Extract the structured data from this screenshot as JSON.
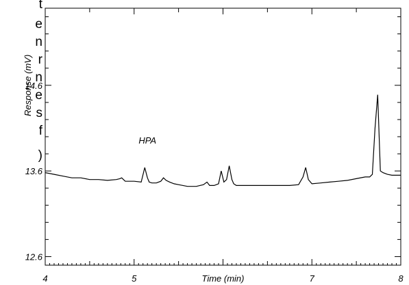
{
  "edge_text": [
    "t",
    "e",
    "n",
    "r",
    "n",
    "e",
    "s",
    "f",
    ")"
  ],
  "chart_data": {
    "type": "line",
    "title": "",
    "xlabel": "Time (min)",
    "ylabel": "Response (mV)",
    "xlim": [
      4,
      8
    ],
    "ylim": [
      12.5,
      15.5
    ],
    "x_ticks": [
      "4",
      "5",
      "6",
      "7",
      "8"
    ],
    "x_tick_labels_shown": [
      "4",
      "5",
      "Time (min)",
      "7",
      "8"
    ],
    "y_ticks": [
      "12.6",
      "13.6",
      "14.6"
    ],
    "grid": false,
    "annotations": [
      {
        "text": "HPA",
        "x": 5.15,
        "y": 13.72
      }
    ],
    "series": [
      {
        "x": [
          4.0,
          4.1,
          4.2,
          4.3,
          4.4,
          4.5,
          4.6,
          4.7,
          4.8,
          4.84,
          4.86,
          4.88,
          4.9,
          5.0,
          5.08,
          5.12,
          5.15,
          5.17,
          5.2,
          5.25,
          5.3,
          5.33,
          5.36,
          5.4,
          5.45,
          5.5,
          5.6,
          5.7,
          5.78,
          5.82,
          5.85,
          5.9,
          5.95,
          5.98,
          6.01,
          6.04,
          6.07,
          6.1,
          6.12,
          6.15,
          6.18,
          6.25,
          6.35,
          6.45,
          6.55,
          6.65,
          6.75,
          6.85,
          6.9,
          6.93,
          6.96,
          7.0,
          7.1,
          7.2,
          7.3,
          7.4,
          7.5,
          7.6,
          7.65,
          7.68,
          7.71,
          7.74,
          7.77,
          7.8,
          7.85,
          7.9,
          7.95,
          8.0
        ],
        "y": [
          13.58,
          13.56,
          13.54,
          13.52,
          13.52,
          13.5,
          13.5,
          13.49,
          13.5,
          13.51,
          13.52,
          13.5,
          13.48,
          13.48,
          13.47,
          13.64,
          13.52,
          13.47,
          13.46,
          13.46,
          13.48,
          13.52,
          13.49,
          13.47,
          13.45,
          13.44,
          13.42,
          13.42,
          13.44,
          13.47,
          13.43,
          13.43,
          13.45,
          13.6,
          13.47,
          13.5,
          13.66,
          13.5,
          13.45,
          13.43,
          13.43,
          13.43,
          13.43,
          13.43,
          13.43,
          13.43,
          13.43,
          13.44,
          13.53,
          13.64,
          13.5,
          13.45,
          13.46,
          13.47,
          13.48,
          13.49,
          13.51,
          13.53,
          13.53,
          13.56,
          14.1,
          14.49,
          13.6,
          13.58,
          13.56,
          13.55,
          13.55,
          13.55
        ]
      }
    ]
  }
}
